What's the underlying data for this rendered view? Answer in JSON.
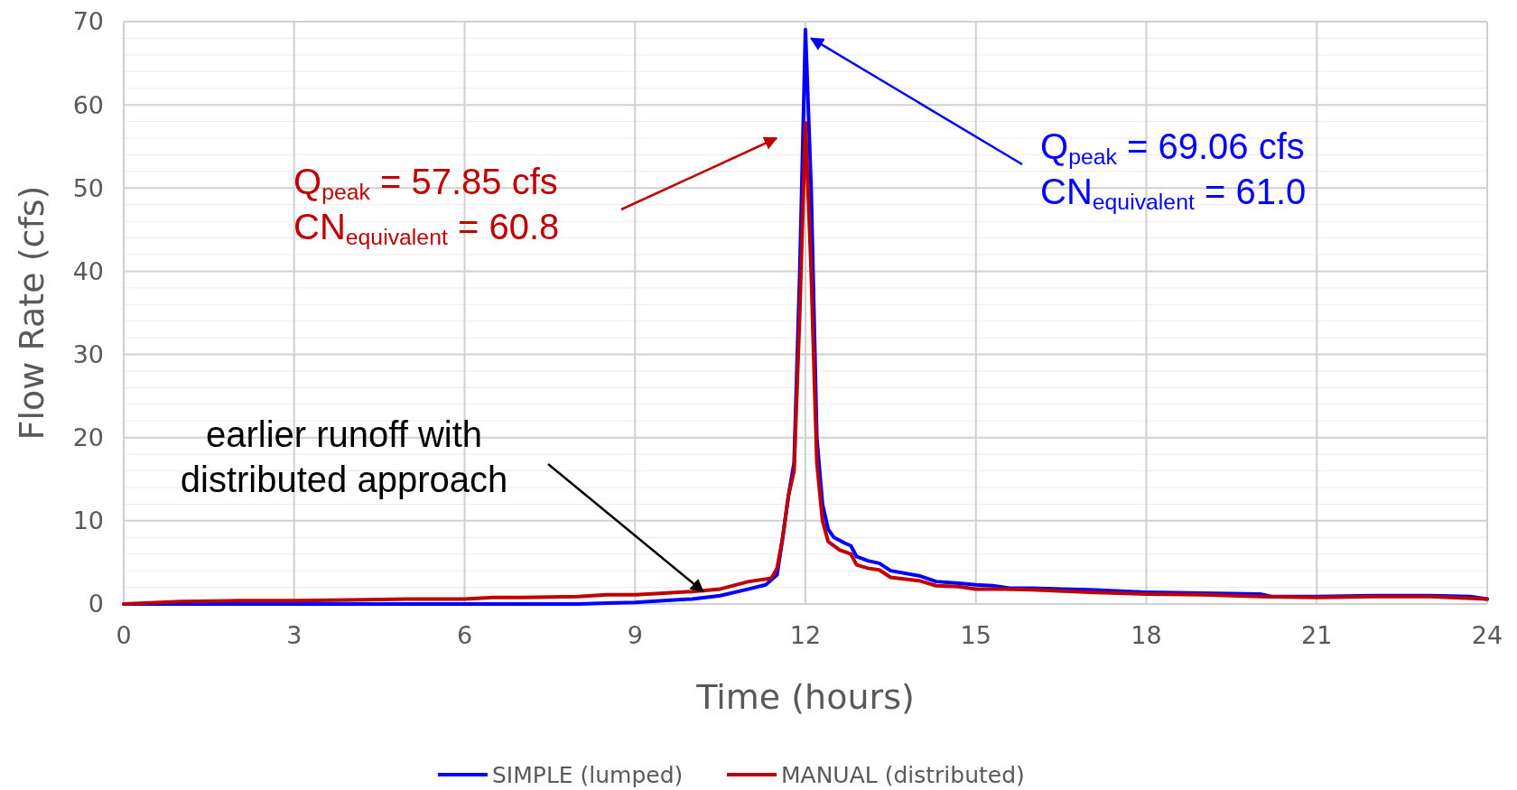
{
  "chart_data": {
    "type": "line",
    "xlabel": "Time (hours)",
    "ylabel": "Flow Rate (cfs)",
    "xlim": [
      0,
      24
    ],
    "xticks": [
      0,
      3,
      6,
      9,
      12,
      15,
      18,
      21,
      24
    ],
    "ylim": [
      0,
      70
    ],
    "yticks": [
      0,
      {
        "value": 2,
        "label": null
      },
      {
        "value": 4,
        "label": null
      },
      {
        "value": 6,
        "label": null
      },
      {
        "value": 8,
        "label": null
      },
      10,
      {
        "value": 12,
        "label": null
      },
      {
        "value": 14,
        "label": null
      },
      {
        "value": 16,
        "label": null
      },
      {
        "value": 18,
        "label": null
      },
      20,
      {
        "value": 22,
        "label": null
      },
      {
        "value": 24,
        "label": null
      },
      {
        "value": 26,
        "label": null
      },
      {
        "value": 28,
        "label": null
      },
      30,
      {
        "value": 32,
        "label": null
      },
      {
        "value": 34,
        "label": null
      },
      {
        "value": 36,
        "label": null
      },
      {
        "value": 38,
        "label": null
      },
      40,
      {
        "value": 42,
        "label": null
      },
      {
        "value": 44,
        "label": null
      },
      {
        "value": 46,
        "label": null
      },
      {
        "value": 48,
        "label": null
      },
      50,
      {
        "value": 52,
        "label": null
      },
      {
        "value": 54,
        "label": null
      },
      {
        "value": 56,
        "label": null
      },
      {
        "value": 58,
        "label": null
      },
      60,
      {
        "value": 62,
        "label": null
      },
      {
        "value": 64,
        "label": null
      },
      {
        "value": 66,
        "label": null
      },
      {
        "value": 68,
        "label": null
      },
      70
    ],
    "grid": true,
    "legend": "bottom",
    "marker": "none",
    "line_style": "solid",
    "series": [
      {
        "name": "SIMPLE (lumped)",
        "color": "#0000ff",
        "x": [
          0,
          1,
          2,
          3,
          4,
          5,
          6,
          7,
          8,
          8.5,
          9,
          9.5,
          10,
          10.5,
          11,
          11.3,
          11.5,
          11.6,
          11.7,
          11.8,
          11.9,
          12,
          12.1,
          12.2,
          12.3,
          12.4,
          12.5,
          12.7,
          12.8,
          12.9,
          13.1,
          13.3,
          13.5,
          14,
          14.3,
          14.7,
          15,
          15.3,
          15.6,
          16,
          16.5,
          17,
          18,
          19,
          20,
          20.2,
          21,
          22,
          23,
          23.7,
          24
        ],
        "values": [
          0,
          0,
          0,
          0,
          0,
          0,
          0,
          0,
          0,
          0.1,
          0.2,
          0.4,
          0.6,
          1.0,
          1.8,
          2.3,
          3.5,
          8,
          13,
          17,
          40,
          69.06,
          50,
          20,
          12,
          9,
          8,
          7.3,
          7,
          5.7,
          5.2,
          4.9,
          4,
          3.4,
          2.7,
          2.5,
          2.3,
          2.2,
          1.9,
          1.9,
          1.8,
          1.7,
          1.4,
          1.3,
          1.2,
          0.9,
          0.9,
          1.0,
          1.0,
          0.9,
          0.6
        ]
      },
      {
        "name": "MANUAL (distributed)",
        "color": "#c00000",
        "x": [
          0,
          1,
          2,
          3,
          4,
          5,
          6,
          6.5,
          7,
          8,
          8.5,
          9,
          9.5,
          10,
          10.5,
          11,
          11.4,
          11.5,
          11.6,
          11.7,
          11.8,
          11.9,
          12,
          12.1,
          12.2,
          12.3,
          12.4,
          12.6,
          12.8,
          12.9,
          13.1,
          13.3,
          13.5,
          14,
          14.3,
          14.7,
          15,
          15.5,
          16,
          17,
          18,
          19,
          20,
          21,
          22,
          23,
          24
        ],
        "values": [
          0,
          0.3,
          0.4,
          0.4,
          0.5,
          0.6,
          0.6,
          0.8,
          0.8,
          0.9,
          1.1,
          1.1,
          1.3,
          1.5,
          1.8,
          2.7,
          3.1,
          4.3,
          8,
          13,
          16,
          35,
          57.85,
          40,
          17,
          10,
          7.5,
          6.5,
          6,
          4.7,
          4.3,
          4.1,
          3.2,
          2.8,
          2.2,
          2.1,
          1.8,
          1.8,
          1.7,
          1.4,
          1.2,
          1.1,
          0.9,
          0.8,
          0.9,
          0.9,
          0.6
        ]
      }
    ],
    "annotations": [
      "Q$_{peak}$ = 57.85 cfs\nCN$_{equivalent}$ = 60.8",
      {
        "text": "Q$_{peak}$ = 69.06 cfs\nCN$_{equivalent}$ = 61.0",
        "x": 12.1,
        "y": 68
      },
      {
        "text": "earlier runoff with\ndistributed approach",
        "x": 10.2,
        "y": 1.5
      }
    ]
  }
}
